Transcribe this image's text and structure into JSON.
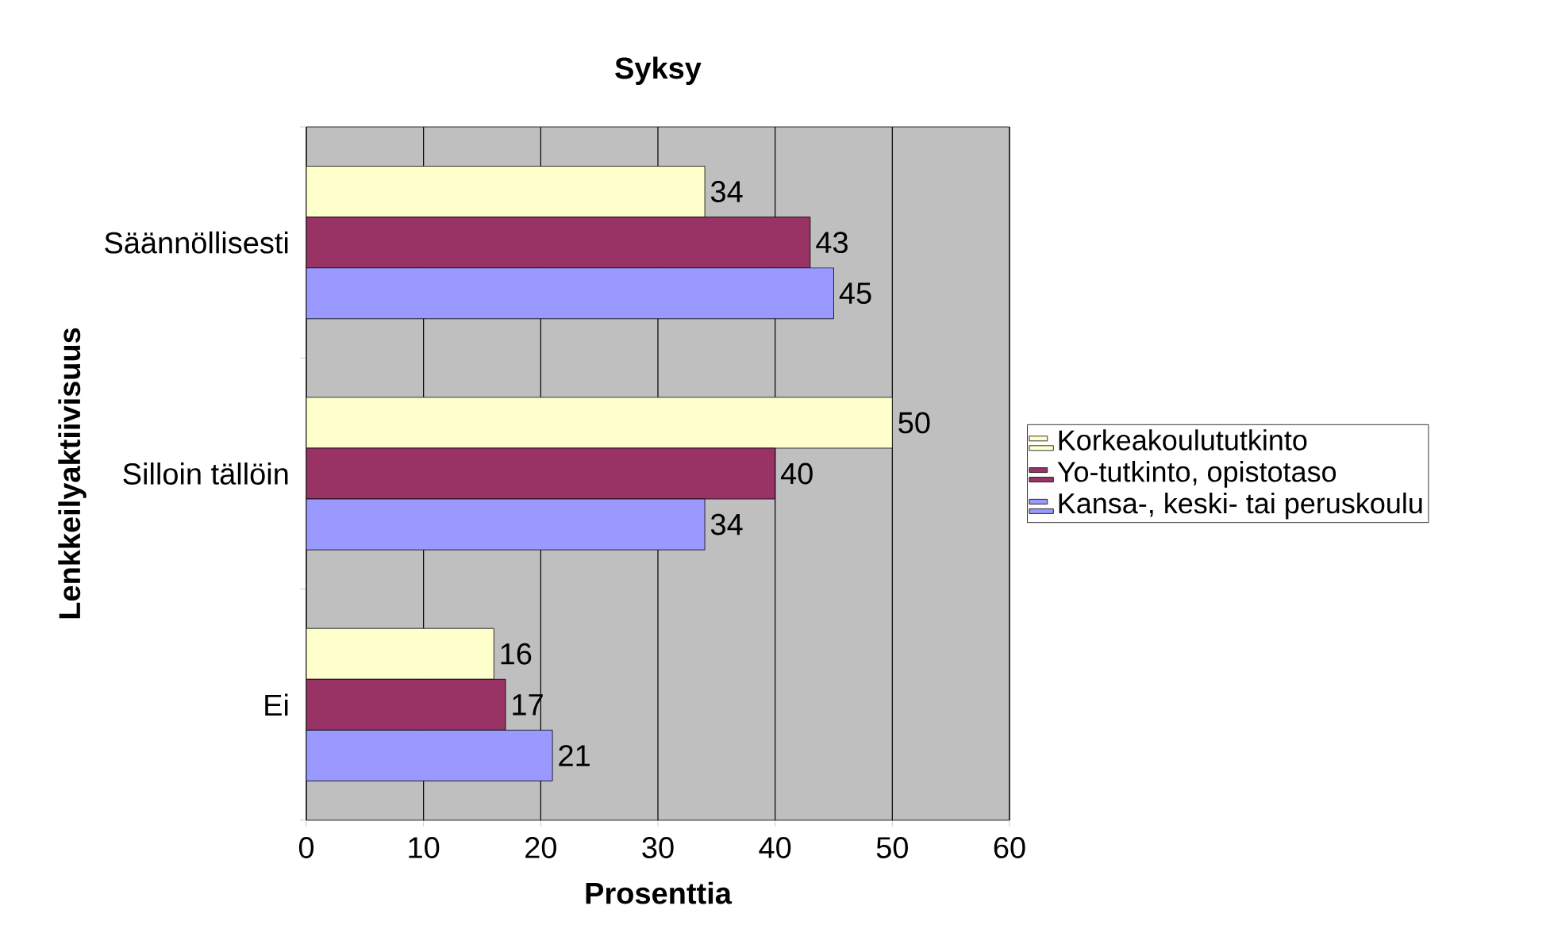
{
  "chart_data": {
    "type": "bar",
    "orientation": "horizontal",
    "title": "Syksy",
    "xlabel": "Prosenttia",
    "ylabel": "Lenkkeilyaktiivisuus",
    "categories": [
      "Säännöllisesti",
      "Silloin tällöin",
      "Ei"
    ],
    "series": [
      {
        "name": "Korkeakoulututkinto",
        "color": "#ffffcc",
        "values": [
          34,
          50,
          16
        ]
      },
      {
        "name": "Yo-tutkinto, opistotaso",
        "color": "#993366",
        "values": [
          43,
          40,
          17
        ]
      },
      {
        "name": "Kansa-, keski- tai peruskoulu",
        "color": "#9999ff",
        "values": [
          45,
          34,
          21
        ]
      }
    ],
    "xlim": [
      0,
      60
    ],
    "xticks": [
      0,
      10,
      20,
      30,
      40,
      50,
      60
    ],
    "grid": "x",
    "legend": "right",
    "data_labels": true
  }
}
